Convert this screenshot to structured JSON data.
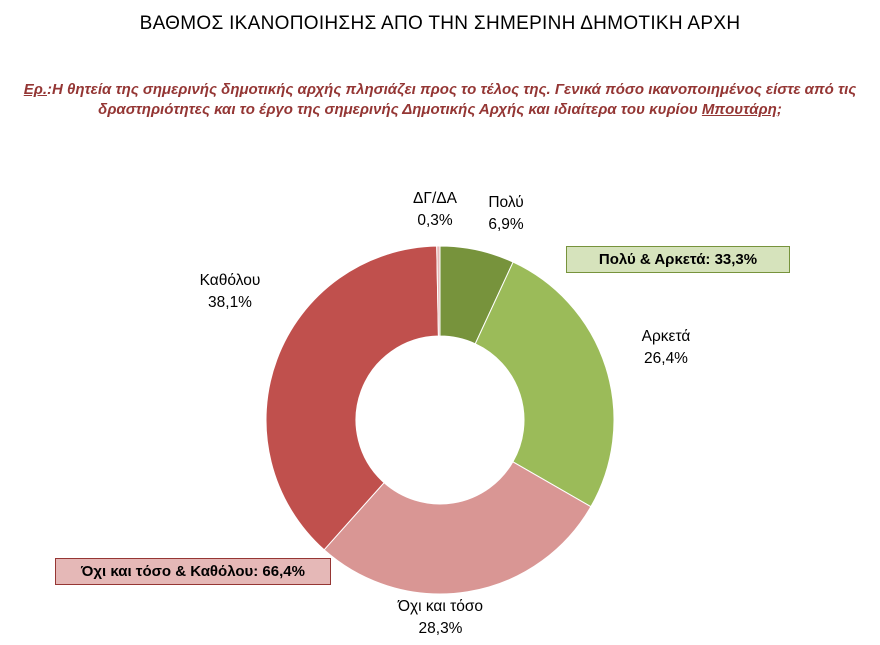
{
  "header": {
    "title": "ΒΑΘΜΟΣ ΙΚΑΝΟΠΟΙΗΣΗΣ ΑΠΟ ΤΗΝ ΣΗΜΕΡΙΝΗ ΔΗΜΟΤΙΚΗ ΑΡΧΗ"
  },
  "question": {
    "label": "Ερ.",
    "colon": ":",
    "body": "Η θητεία της σημερινής δημοτικής αρχής πλησιάζει προς το τέλος της. Γενικά πόσο ικανοποιημένος είστε από τις δραστηριότητες και το έργο της σημερινής Δημοτικής Αρχής και ιδιαίτερα του κυρίου ",
    "underlined_name": "Μπουτάρη",
    "suffix": ";"
  },
  "chart_data": {
    "type": "pie",
    "subtype": "donut",
    "title": "ΒΑΘΜΟΣ ΙΚΑΝΟΠΟΙΗΣΗΣ ΑΠΟ ΤΗΝ ΣΗΜΕΡΙΝΗ ΔΗΜΟΤΙΚΗ ΑΡΧΗ",
    "unit": "%",
    "start_angle_deg": 0,
    "direction": "clockwise",
    "hole": true,
    "slices": [
      {
        "label": "Πολύ",
        "value": 6.9,
        "display": "6,9%",
        "color": "#77933C"
      },
      {
        "label": "Αρκετά",
        "value": 26.4,
        "display": "26,4%",
        "color": "#9BBB59"
      },
      {
        "label": "Όχι και τόσο",
        "value": 28.3,
        "display": "28,3%",
        "color": "#D99694"
      },
      {
        "label": "Καθόλου",
        "value": 38.1,
        "display": "38,1%",
        "color": "#C0504D"
      },
      {
        "label": "ΔΓ/ΔΑ",
        "value": 0.3,
        "display": "0,3%",
        "color": "#E6B9B8"
      }
    ],
    "annotations": [
      {
        "id": "positive",
        "text": "Πολύ & Αρκετά: 33,3%",
        "fill": "#D6E3BC",
        "border": "#77933C"
      },
      {
        "id": "negative",
        "text": "Όχι και τόσο & Καθόλου: 66,4%",
        "fill": "#E5B8B7",
        "border": "#963634"
      }
    ]
  }
}
